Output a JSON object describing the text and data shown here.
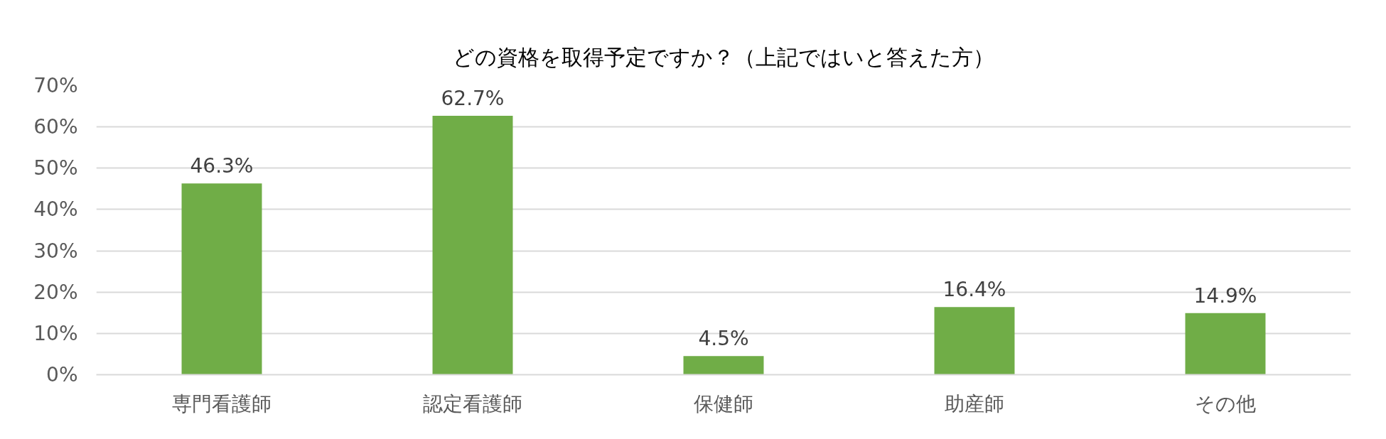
{
  "chart_data": {
    "type": "bar",
    "title": "どの資格を取得予定ですか？（上記ではいと答えた方）",
    "categories": [
      "専門看護師",
      "認定看護師",
      "保健師",
      "助産師",
      "その他"
    ],
    "values": [
      46.3,
      62.7,
      4.5,
      16.4,
      14.9
    ],
    "value_labels": [
      "46.3%",
      "62.7%",
      "4.5%",
      "16.4%",
      "14.9%"
    ],
    "color": "#70ad47",
    "ylim": [
      0,
      70
    ],
    "yticks": [
      {
        "value": 0,
        "label": "0%"
      },
      {
        "value": 10,
        "label": "10%"
      },
      {
        "value": 20,
        "label": "20%"
      },
      {
        "value": 30,
        "label": "30%"
      },
      {
        "value": 40,
        "label": "40%"
      },
      {
        "value": 50,
        "label": "50%"
      },
      {
        "value": 60,
        "label": "60%"
      },
      {
        "value": 70,
        "label": "70%"
      }
    ],
    "grid": "y"
  }
}
